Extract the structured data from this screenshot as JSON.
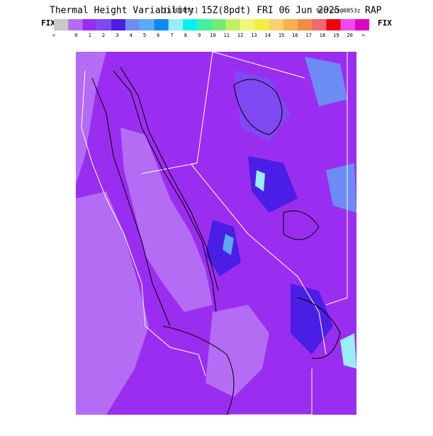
{
  "header": {
    "title": "Thermal Height Variability",
    "units": "[x1000ft]",
    "valid": "15Z(8pdt) FRI 06 Jun 2025",
    "forecast": "9hrFcst@0853z",
    "model": "RAP"
  },
  "legend": {
    "left_label": "FIX",
    "right_label": "FIX",
    "colors": [
      "#c8c8c8",
      "#b46cf4",
      "#9a2ef0",
      "#7e48f2",
      "#4a1ee4",
      "#6c8cf4",
      "#58aaf4",
      "#1088f0",
      "#98eef8",
      "#00f0f0",
      "#40f0a0",
      "#70ec70",
      "#c0f060",
      "#f0f878",
      "#f0f040",
      "#f8d070",
      "#f8b048",
      "#f08c48",
      "#f06870",
      "#f00000",
      "#f048f0",
      "#e000c8"
    ],
    "labels": [
      "<",
      "0",
      "1",
      "2",
      "3",
      "4",
      "5",
      "6",
      "7",
      "8",
      "9",
      "10",
      "11",
      "12",
      "13",
      "14",
      "15",
      "16",
      "17",
      "18",
      "19",
      "20",
      ">"
    ]
  }
}
